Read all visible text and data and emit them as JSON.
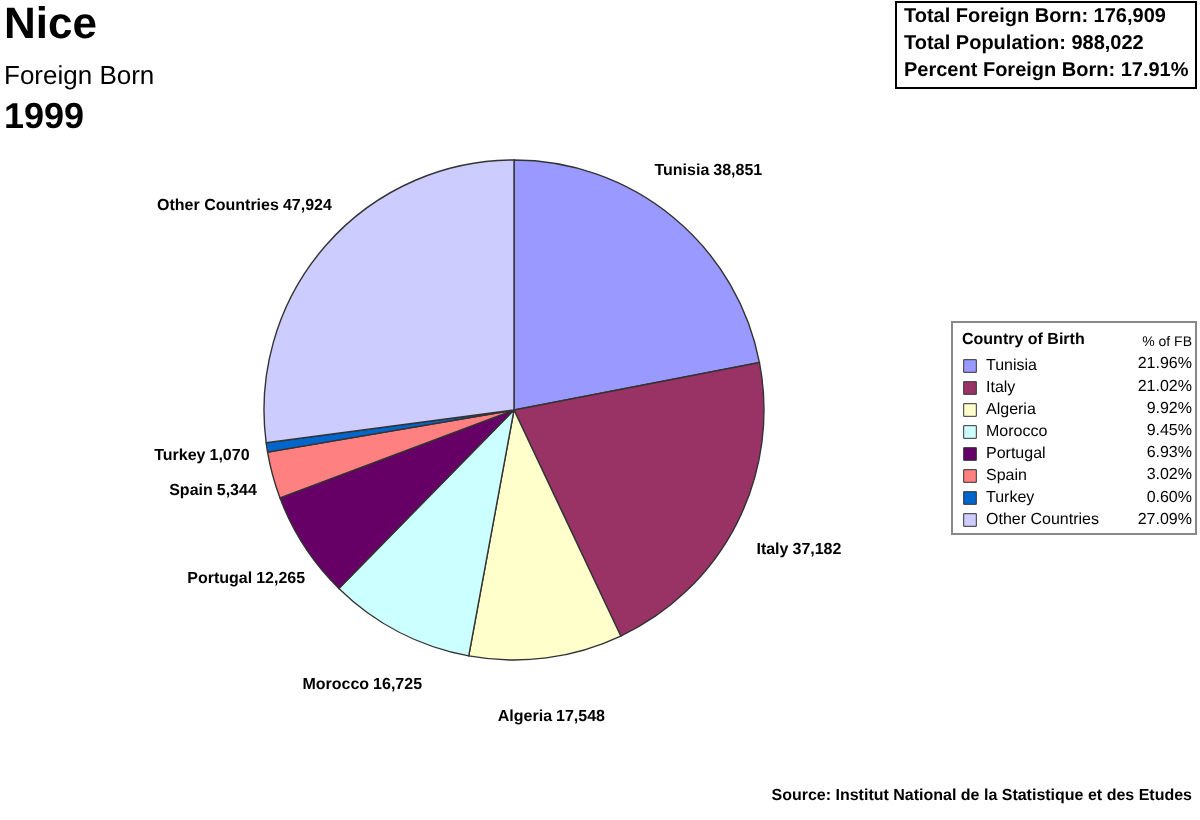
{
  "chart_data": {
    "type": "pie",
    "title": "Nice",
    "subtitle": "Foreign Born",
    "categories": [
      "Tunisia",
      "Italy",
      "Algeria",
      "Morocco",
      "Portugal",
      "Spain",
      "Turkey",
      "Other Countries"
    ],
    "values": [
      38851,
      37182,
      17548,
      16725,
      12265,
      5344,
      1070,
      47924
    ],
    "colors": [
      "#9999ff",
      "#993366",
      "#ffffcc",
      "#ccffff",
      "#660066",
      "#ff8080",
      "#0066cc",
      "#ccccff"
    ],
    "value_labels": [
      "38,851",
      "37,182",
      "17,548",
      "16,725",
      "12,265",
      "5,344",
      "1,070",
      "47,924"
    ],
    "legend": "right",
    "legend_title": "Country of Birth",
    "annotations": [
      "1999",
      "Total Foreign Born: 176,909",
      "Total Population: 988,022",
      "Percent Foreign Born: 17.91%",
      "% of FB",
      "21.96%",
      "21.02%",
      "9.92%",
      "9.45%",
      "6.93%",
      "3.02%",
      "0.60%",
      "27.09%",
      "Source: Institut National de la Statistique et des Etudes"
    ]
  }
}
